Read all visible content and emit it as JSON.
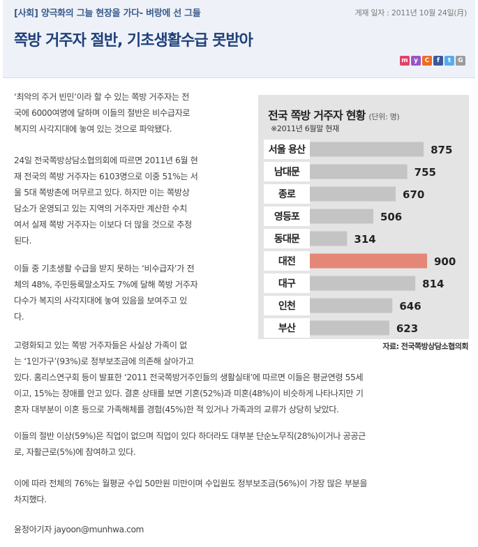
{
  "header": {
    "section": "[사회] 양극화의 그늘 현장을 가다- 벼랑에 선 그들",
    "date": "게재 일자 : 2011년 10월 24일(月)",
    "title": "쪽방 거주자 절반, 기초생활수급 못받아"
  },
  "share_icons": [
    {
      "name": "me2day-icon",
      "label": "m",
      "color": "#e0436c"
    },
    {
      "name": "yozm-icon",
      "label": "y",
      "color": "#9a55c8"
    },
    {
      "name": "clog-icon",
      "label": "C",
      "color": "#f06a22"
    },
    {
      "name": "facebook-icon",
      "label": "f",
      "color": "#3b5998"
    },
    {
      "name": "twitter-icon",
      "label": "t",
      "color": "#55acee"
    },
    {
      "name": "google-icon",
      "label": "G",
      "color": "#9b9b9b"
    }
  ],
  "paragraphs": {
    "p1": [
      "‘최악의 주거 빈민’이라 할 수 있는 쪽방 거주자는 전",
      "국에 6000여명에 달하며 이들의 절반은 비수급자로",
      "복지의 사각지대에 놓여 있는 것으로 파악됐다."
    ],
    "p2": [
      "24일 전국쪽방상담소협의회에 따르면 2011년 6월 현",
      "재 전국의 쪽방 거주자는 6103명으로 이중 51%는 서",
      "울 5대 쪽방촌에 머무르고 있다. 하지만 이는 쪽방상",
      "담소가 운영되고 있는 지역의 거주자만 계산한 수치",
      "여서 실제 쪽방 거주자는 이보다 더 많을 것으로 추정",
      "된다."
    ],
    "p3": [
      "이들 중 기초생활 수급을 받지 못하는 ‘비수급자’가 전",
      "체의 48%, 주민등록말소자도 7%에 달해 쪽방 거주자",
      "다수가 복지의 사각지대에 놓여 있음을 보여주고 있",
      "다."
    ],
    "p4": [
      "고령화되고 있는 쪽방 거주자들은 사실상 가족이 없",
      "는 ‘1인가구’(93%)로 정부보조금에 의존해 살아가고",
      "있다. 홈리스연구회 등이 발표한 ‘2011 전국쪽방거주인들의 생활실태’에 따르면 이들은 평균연령 55세",
      "이고, 15%는 장애를 안고 있다. 결혼 상태를 보면 기혼(52%)과 미혼(48%)이 비슷하게 나타나지만 기",
      "혼자 대부분이 이혼 등으로 가족해체를 경험(45%)한 적 있거나 가족과의 교류가 상당히 낮았다."
    ],
    "p5": [
      "이들의 절반 이상(59%)은 직업이 없으며 직업이 있다 하더라도 대부분 단순노무직(28%)이거나 공공근",
      "로, 자활근로(5%)에 참여하고 있다."
    ],
    "p6": [
      "이에 따라 전체의 76%는 월평균 수입 50만원 미만이며 수입원도 정부보조금(56%)이 가장 많은 부분을",
      "차지했다."
    ],
    "byline": "윤정아기자 jayoon@munhwa.com"
  },
  "chart_data": {
    "type": "bar",
    "orientation": "horizontal",
    "title": "전국 쪽방 거주자 현황",
    "unit": "(단위: 명)",
    "subtitle": "※2011년 6월말 현재",
    "source": "자료: 전국쪽방상담소협의회",
    "categories": [
      "서울 용산",
      "남대문",
      "종로",
      "영등포",
      "동대문",
      "대전",
      "대구",
      "인천",
      "부산"
    ],
    "values": [
      875,
      755,
      670,
      506,
      314,
      900,
      814,
      646,
      623
    ],
    "highlight": "대전",
    "bar_color": "#c4c4c4",
    "highlight_color": "#e58777",
    "xlim": [
      0,
      900
    ]
  }
}
